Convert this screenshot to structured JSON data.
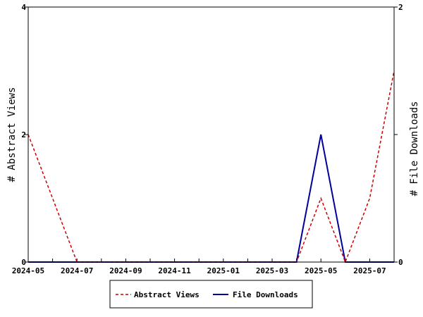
{
  "chart_data": {
    "type": "line",
    "x_tick_labels": [
      "2024-05",
      "2024-07",
      "2024-09",
      "2024-11",
      "2025-01",
      "2025-03",
      "2025-05",
      "2025-07"
    ],
    "x": [
      "2024-05",
      "2024-06",
      "2024-07",
      "2024-08",
      "2024-09",
      "2024-10",
      "2024-11",
      "2024-12",
      "2025-01",
      "2025-02",
      "2025-03",
      "2025-04",
      "2025-05",
      "2025-06",
      "2025-07",
      "2025-08"
    ],
    "left_axis": {
      "label": "# Abstract Views",
      "ylim": [
        0,
        4
      ],
      "tick_labels": [
        "0",
        "2",
        "4"
      ]
    },
    "right_axis": {
      "label": "# File Downloads",
      "ylim": [
        0,
        2
      ],
      "tick_labels": [
        "0",
        "1",
        "2"
      ]
    },
    "series": [
      {
        "name": "Abstract Views",
        "axis": "left",
        "color": "#cc0000",
        "dash": true,
        "values": [
          2,
          1,
          0,
          0,
          0,
          0,
          0,
          0,
          0,
          0,
          0,
          0,
          1,
          0,
          1,
          3
        ]
      },
      {
        "name": "File Downloads",
        "axis": "right",
        "color": "#00009c",
        "dash": false,
        "values": [
          0,
          0,
          0,
          0,
          0,
          0,
          0,
          0,
          0,
          0,
          0,
          0,
          1,
          0,
          0,
          0
        ]
      }
    ],
    "legend_position": "bottom-center",
    "grid": false
  }
}
